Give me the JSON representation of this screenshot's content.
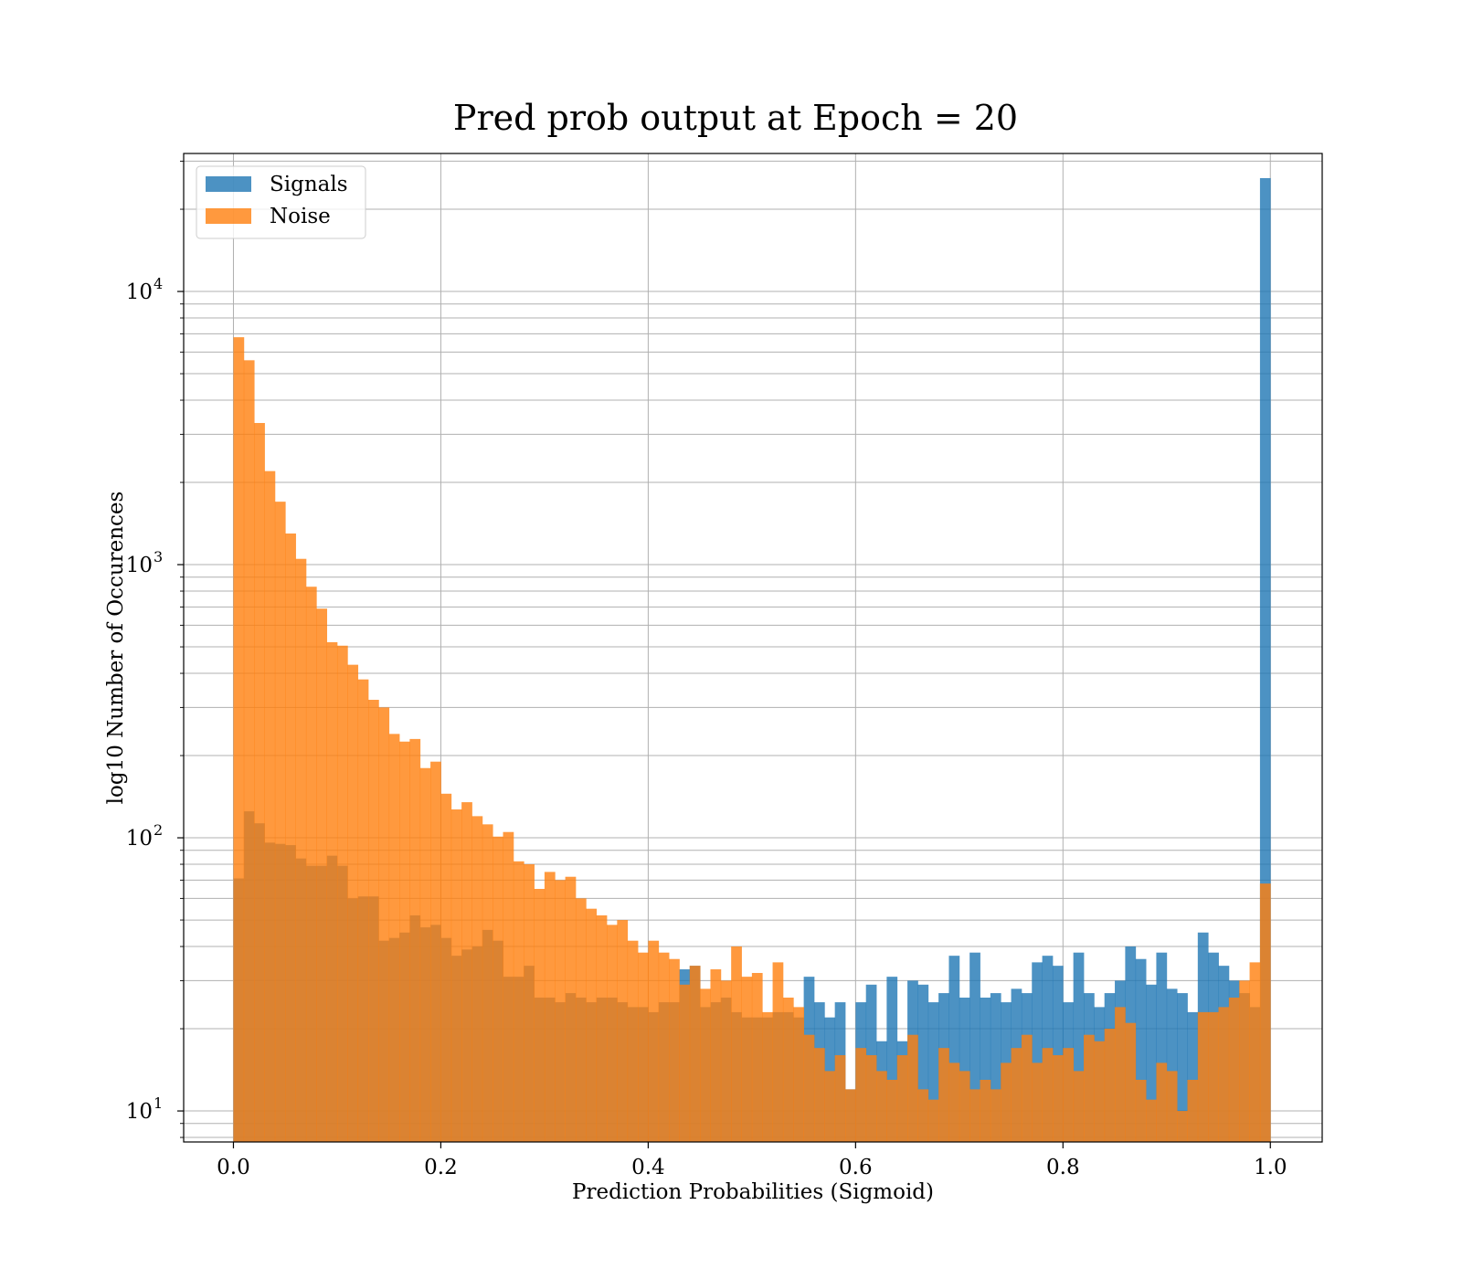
{
  "chart_data": {
    "type": "bar",
    "title": "Pred prob output at Epoch = 20",
    "xlabel": "Prediction Probabilities (Sigmoid)",
    "ylabel": "log10 Number of Occurences",
    "y_scale": "log",
    "xlim": [
      -0.048,
      1.05
    ],
    "ylim": [
      7.7,
      32000
    ],
    "x_ticks": [
      0.0,
      0.2,
      0.4,
      0.6,
      0.8,
      1.0
    ],
    "x_tick_labels": [
      "0.0",
      "0.2",
      "0.4",
      "0.6",
      "0.8",
      "1.0"
    ],
    "y_ticks": [
      10,
      100,
      1000,
      10000
    ],
    "y_tick_labels": [
      {
        "base": "10",
        "exp": "1"
      },
      {
        "base": "10",
        "exp": "2"
      },
      {
        "base": "10",
        "exp": "3"
      },
      {
        "base": "10",
        "exp": "4"
      }
    ],
    "grid": true,
    "grid_minor_y": true,
    "legend_position": "upper-left",
    "bins": {
      "start": 0.0,
      "end": 1.0,
      "count": 100
    },
    "series": [
      {
        "name": "Signals",
        "color": "#1f77b4",
        "alpha": 0.8,
        "values": [
          71,
          125,
          113,
          96,
          95,
          94,
          84,
          79,
          79,
          86,
          79,
          60,
          61,
          61,
          42,
          43,
          45,
          52,
          47,
          48,
          43,
          37,
          39,
          40,
          46,
          42,
          31,
          31,
          34,
          26,
          26,
          25,
          27,
          26,
          25,
          26,
          26,
          25,
          24,
          24,
          23,
          25,
          25,
          33,
          34,
          24,
          25,
          26,
          23,
          22,
          22,
          22,
          23,
          23,
          22,
          31,
          25,
          22,
          25,
          12,
          25,
          29,
          18,
          31,
          18,
          30,
          29,
          25,
          27,
          37,
          26,
          38,
          26,
          27,
          25,
          28,
          27,
          35,
          37,
          34,
          25,
          38,
          27,
          24,
          27,
          30,
          40,
          36,
          29,
          38,
          28,
          27,
          23,
          45,
          38,
          34,
          30,
          27,
          24,
          26000
        ]
      },
      {
        "name": "Noise",
        "color": "#ff7f0e",
        "alpha": 0.8,
        "values": [
          6800,
          5600,
          3300,
          2200,
          1700,
          1300,
          1050,
          830,
          690,
          520,
          505,
          430,
          380,
          320,
          300,
          240,
          225,
          230,
          180,
          190,
          145,
          127,
          135,
          120,
          112,
          101,
          105,
          82,
          80,
          65,
          75,
          70,
          72,
          60,
          55,
          52,
          48,
          50,
          42,
          38,
          42,
          38,
          36,
          29,
          34,
          28,
          33,
          30,
          40,
          31,
          32,
          23,
          35,
          26,
          24,
          19,
          17,
          14,
          16,
          12,
          17,
          16,
          14,
          13,
          16,
          19,
          12,
          11,
          17,
          15,
          14,
          12,
          13,
          12,
          15,
          17,
          19,
          15,
          17,
          16,
          17,
          14,
          19,
          18,
          20,
          24,
          21,
          13,
          11,
          15,
          14,
          10,
          13,
          23,
          23,
          24,
          26,
          30,
          35,
          68
        ]
      }
    ]
  }
}
